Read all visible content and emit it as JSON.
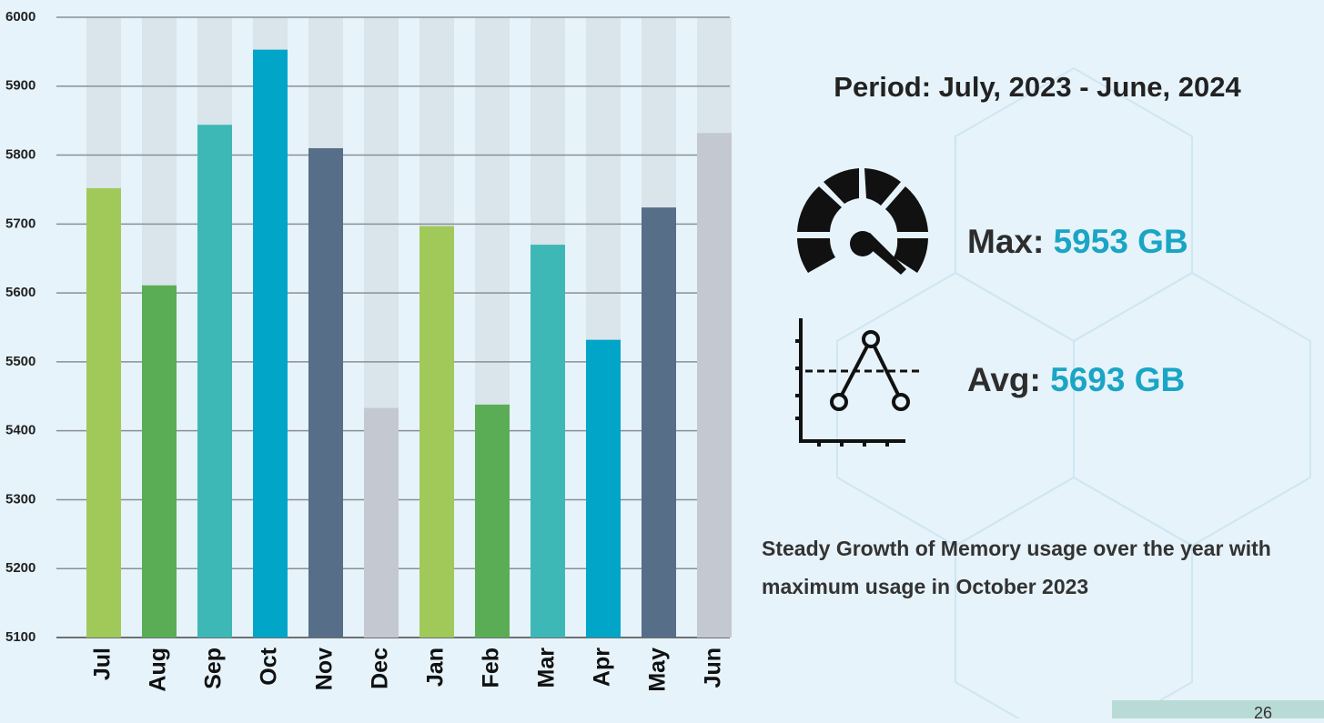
{
  "chart_data": {
    "type": "bar",
    "categories": [
      "Jul",
      "Aug",
      "Sep",
      "Oct",
      "Nov",
      "Dec",
      "Jan",
      "Feb",
      "Mar",
      "Apr",
      "May",
      "Jun"
    ],
    "values": [
      5752,
      5611,
      5844,
      5953,
      5810,
      5433,
      5697,
      5438,
      5670,
      5532,
      5724,
      5832
    ],
    "colors": [
      "#a1c95a",
      "#5bad55",
      "#3db8b6",
      "#00a5c8",
      "#566e88",
      "#c4c8d1",
      "#a1c95a",
      "#5bad55",
      "#3db8b6",
      "#00a5c8",
      "#566e88",
      "#c4c8d1"
    ],
    "track_color": "#d9e4eb",
    "ylim": [
      5100,
      6000
    ],
    "yticks": [
      5100,
      5200,
      5300,
      5400,
      5500,
      5600,
      5700,
      5800,
      5900,
      6000
    ],
    "grid": true
  },
  "panel": {
    "period": "Period: July, 2023 - June, 2024",
    "max_label": "Max:",
    "max_value": "5953 GB",
    "avg_label": "Avg:",
    "avg_value": "5693 GB",
    "description": "Steady Growth of Memory usage over the year with maximum usage in October 2023",
    "page_number": "26"
  }
}
